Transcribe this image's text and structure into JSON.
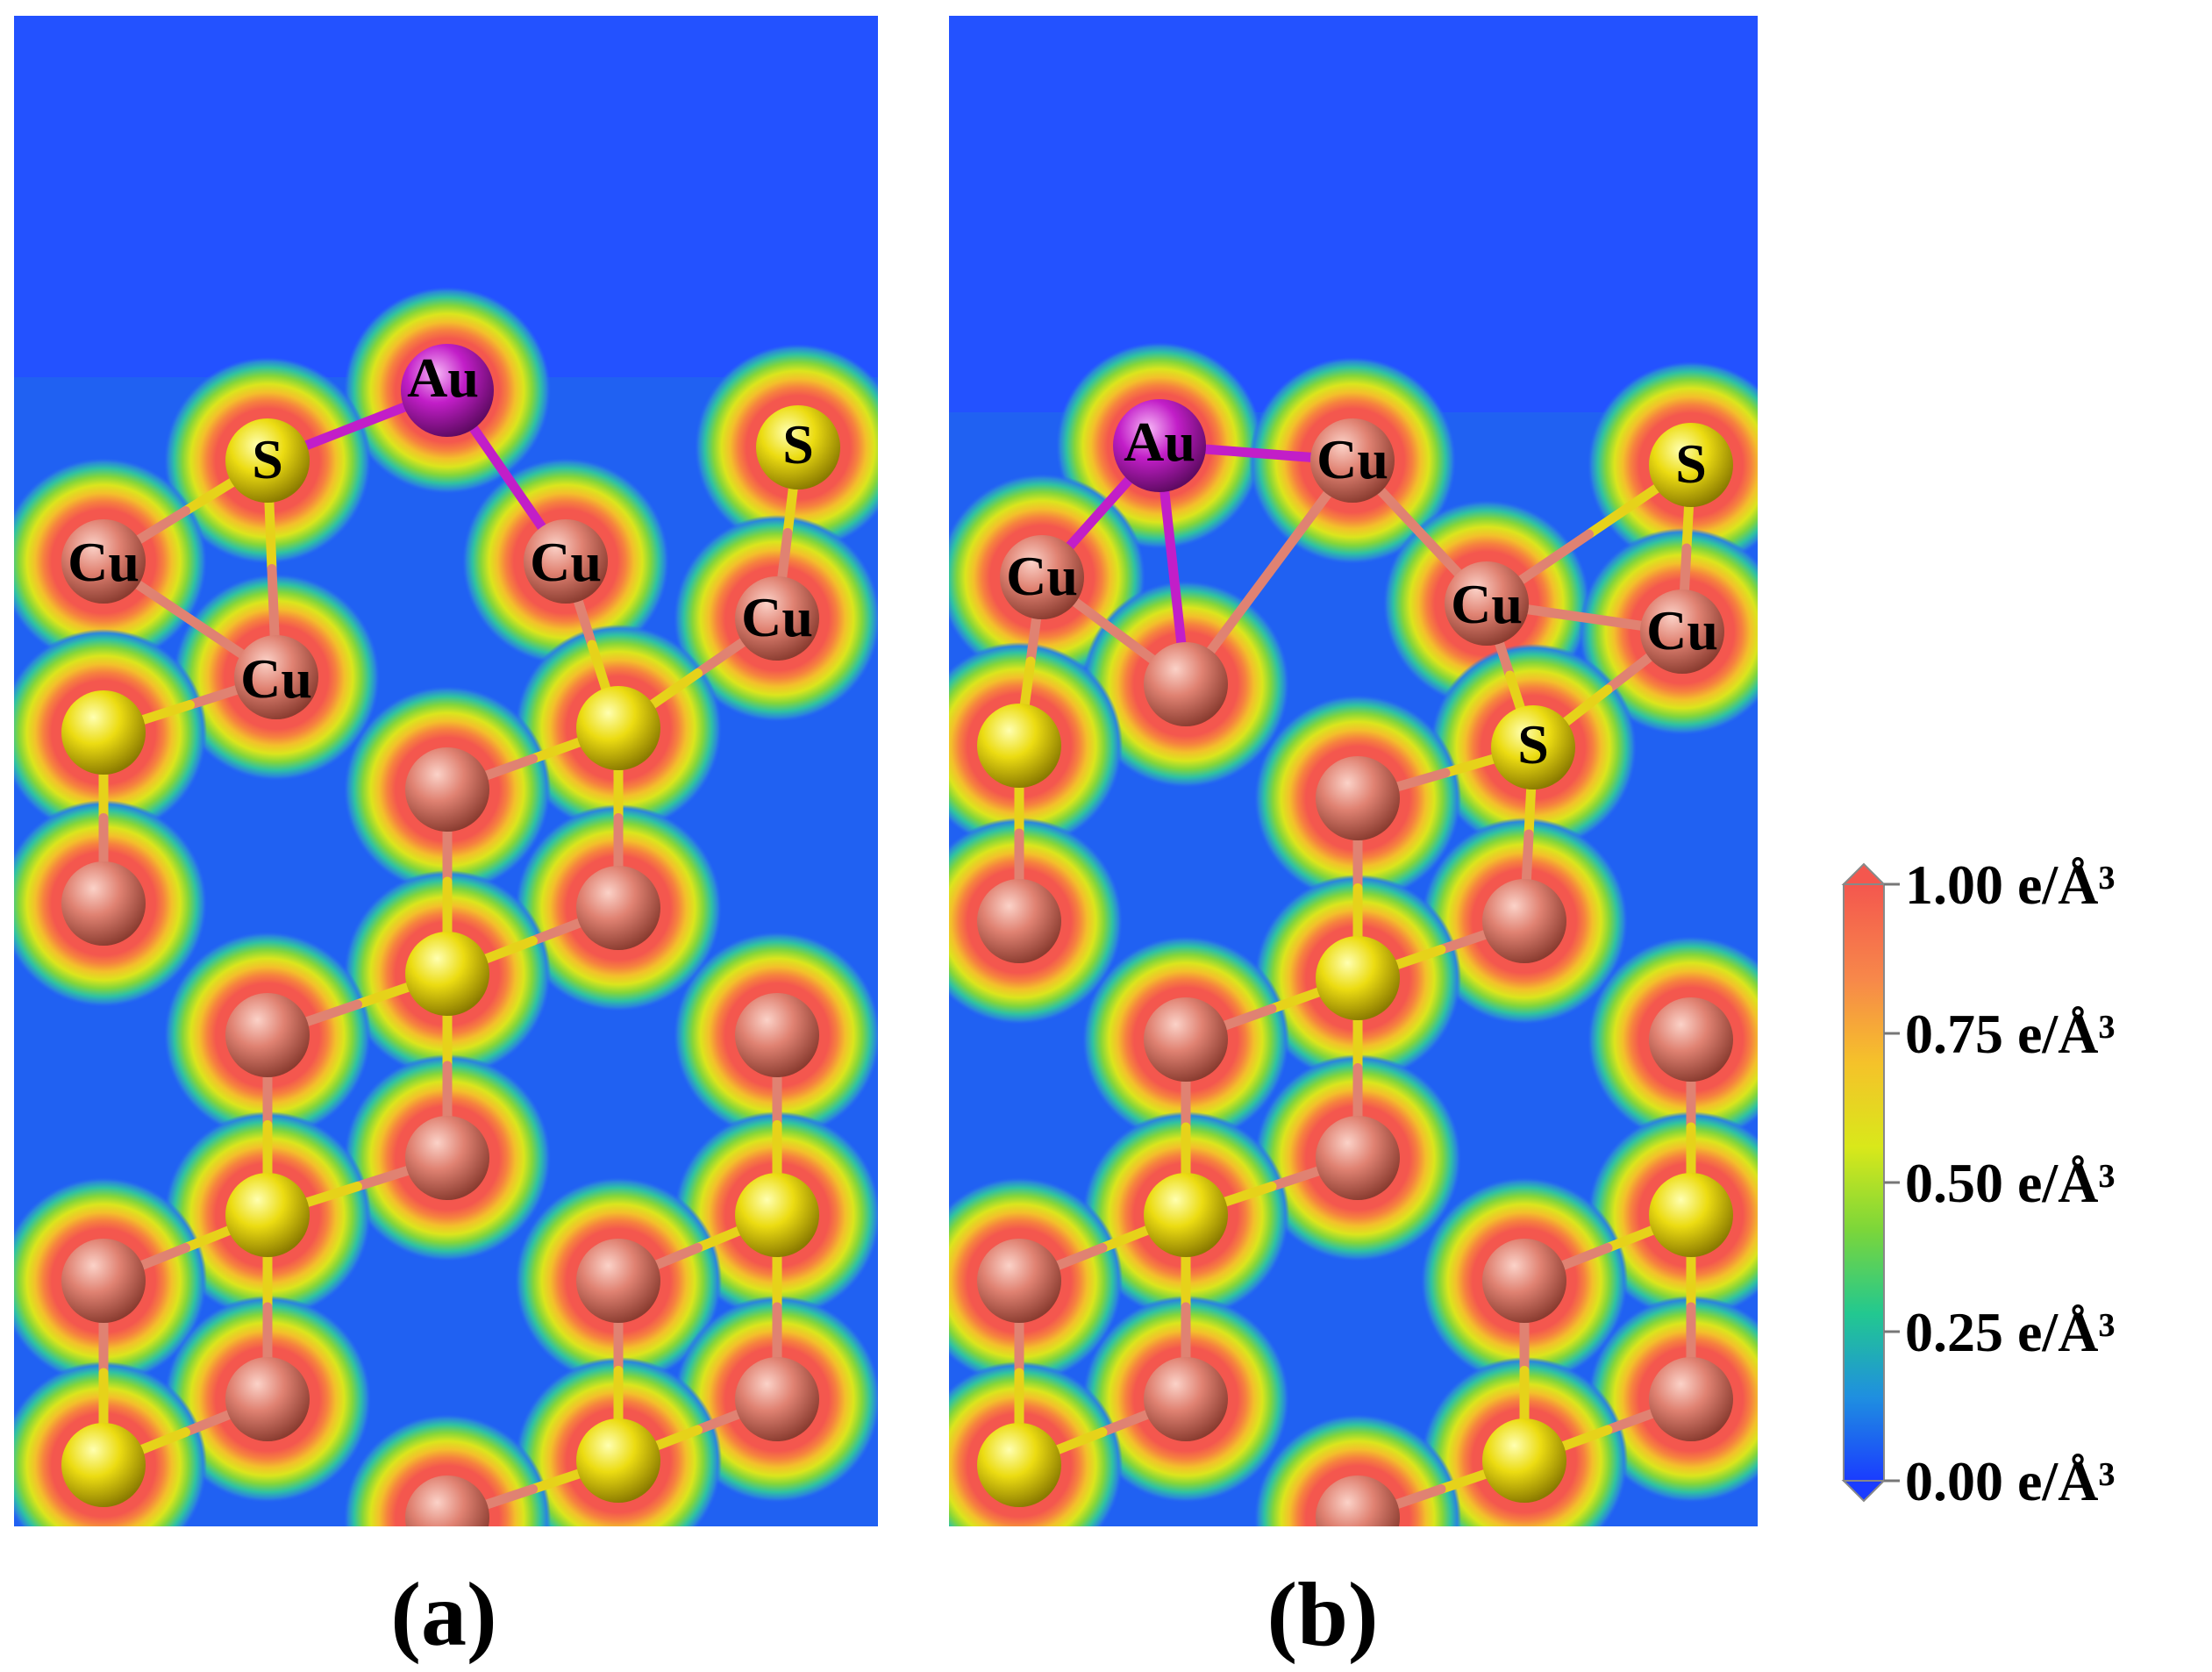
{
  "figure": {
    "panels": [
      {
        "id": "a",
        "caption": "(a)",
        "labeled_atoms": [
          {
            "element": "Au",
            "label": "Au"
          },
          {
            "element": "S",
            "label": "S"
          },
          {
            "element": "S",
            "label": "S"
          },
          {
            "element": "Cu",
            "label": "Cu"
          },
          {
            "element": "Cu",
            "label": "Cu"
          },
          {
            "element": "Cu",
            "label": "Cu"
          },
          {
            "element": "Cu",
            "label": "Cu"
          }
        ]
      },
      {
        "id": "b",
        "caption": "(b)",
        "labeled_atoms": [
          {
            "element": "Au",
            "label": "Au"
          },
          {
            "element": "Cu",
            "label": "Cu"
          },
          {
            "element": "S",
            "label": "S"
          },
          {
            "element": "Cu",
            "label": "Cu"
          },
          {
            "element": "Cu",
            "label": "Cu"
          },
          {
            "element": "Cu",
            "label": "Cu"
          },
          {
            "element": "S",
            "label": "S"
          }
        ]
      }
    ],
    "colorbar": {
      "unit_suffix": "e/Å³",
      "ticks": [
        {
          "value": 1.0,
          "label": "1.00 e/Å³"
        },
        {
          "value": 0.75,
          "label": "0.75 e/Å³"
        },
        {
          "value": 0.5,
          "label": "0.50 e/Å³"
        },
        {
          "value": 0.25,
          "label": "0.25 e/Å³"
        },
        {
          "value": 0.0,
          "label": "0.00 e/Å³"
        }
      ],
      "colors": [
        "#1a3cff",
        "#1f8fe0",
        "#22c890",
        "#7bd63a",
        "#d9e81a",
        "#f5c22a",
        "#f7884a",
        "#f4574e"
      ]
    },
    "element_colors": {
      "Cu": "#e08272",
      "S": "#e6d21a",
      "Au": "#c21ec8",
      "background": "#2352ff"
    }
  }
}
